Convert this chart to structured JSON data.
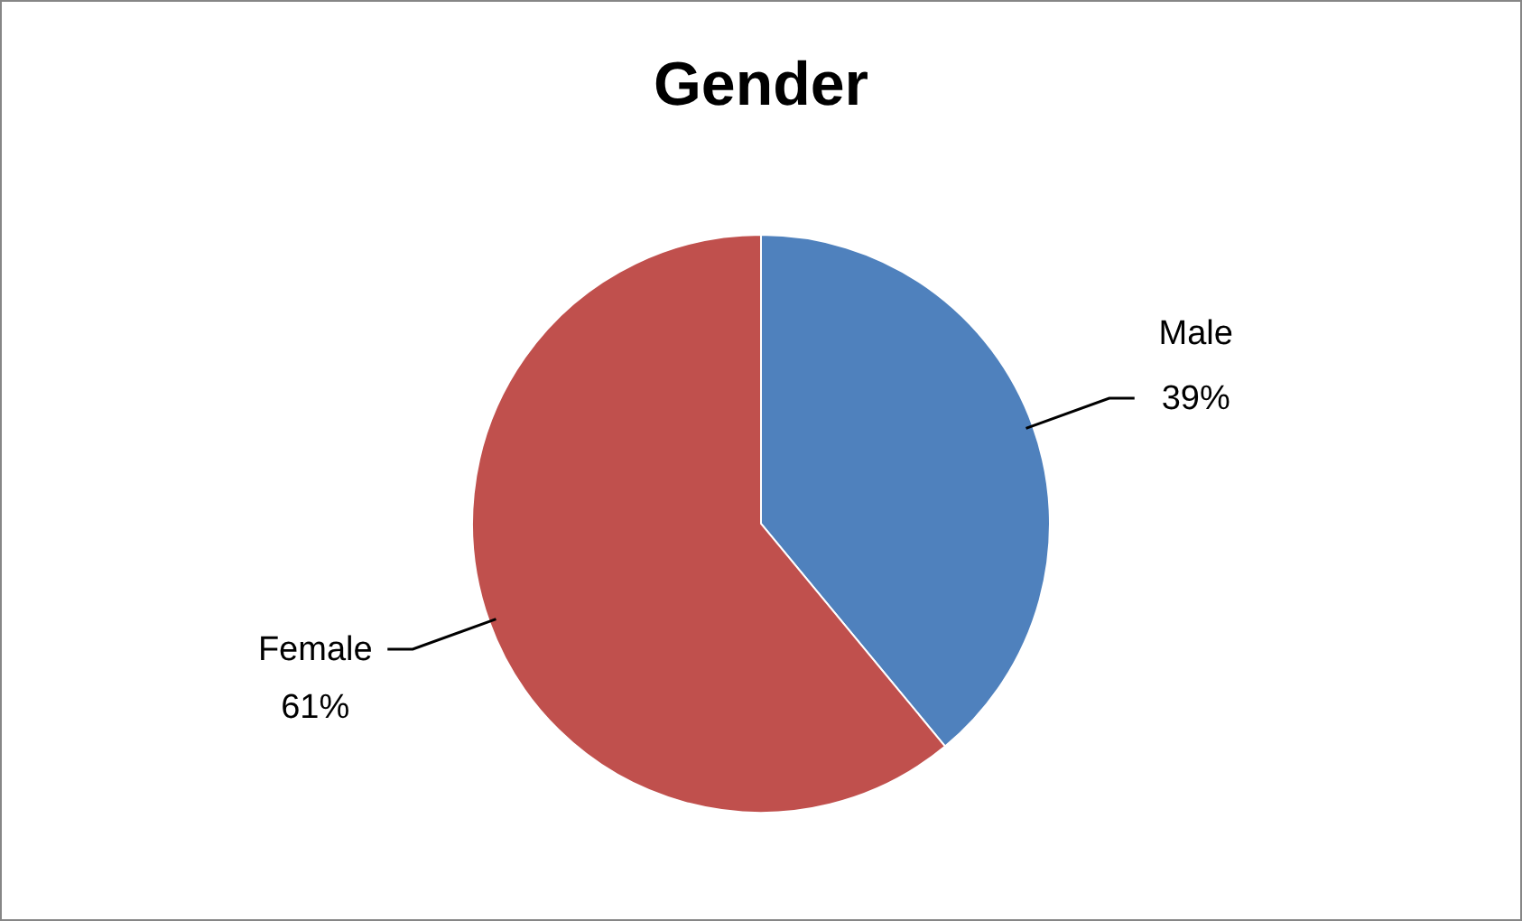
{
  "chart_data": {
    "type": "pie",
    "title": "Gender",
    "categories": [
      "Male",
      "Female"
    ],
    "values": [
      39,
      61
    ],
    "colors": [
      "#4f81bd",
      "#c0504d"
    ],
    "value_labels": [
      "39%",
      "61%"
    ]
  }
}
